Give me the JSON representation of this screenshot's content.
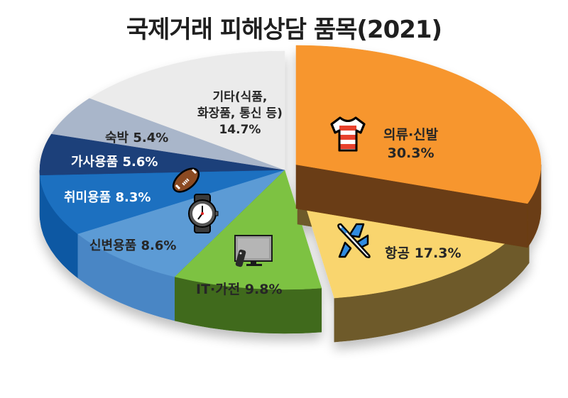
{
  "title": "국제거래 피해상담 품목(2021)",
  "chart_data": {
    "type": "pie",
    "title": "국제거래 피해상담 품목(2021)",
    "style": "3D exploded pie",
    "categories": [
      "의류·신발",
      "항공",
      "IT·가전",
      "신변용품",
      "취미용품",
      "가사용품",
      "숙박",
      "기타(식품, 화장품, 통신 등)"
    ],
    "values": [
      30.3,
      17.3,
      9.8,
      8.6,
      8.3,
      5.6,
      5.4,
      14.7
    ],
    "unit": "%",
    "colors": [
      "#F7962E",
      "#F9D56E",
      "#7DC242",
      "#5B9BD5",
      "#1A6FC0",
      "#1F3F7A",
      "#A9B6CA",
      "#EBEBEB"
    ],
    "side_colors": [
      "#6B3E12",
      "#6E5A2C",
      "#3F6B1E",
      "#4A86C5",
      "#0E58A3",
      "#152D5A",
      "#8A97AC",
      "#CFCFCF"
    ],
    "exploded": [
      "의류·신발",
      "항공"
    ],
    "legend": "none (data labels on slices)"
  },
  "labels": {
    "clothing": {
      "name": "의류·신발",
      "value": "30.3%",
      "icon": "t-shirt-icon"
    },
    "airline": {
      "name": "항공",
      "value": "17.3%",
      "text": "항공 17.3%",
      "icon": "airplane-icon"
    },
    "it": {
      "text": "IT·가전 9.8%",
      "icon": "tv-remote-icon"
    },
    "personal": {
      "text": "신변용품 8.6%",
      "icon": "wristwatch-icon"
    },
    "hobby": {
      "text": "취미용품 8.3%",
      "icon": "football-icon"
    },
    "household": {
      "text": "가사용품 5.6%"
    },
    "lodging": {
      "text": "숙박 5.4%"
    },
    "other": {
      "line1": "기타(식품,",
      "line2": "화장품, 통신 등)",
      "value": "14.7%"
    }
  }
}
